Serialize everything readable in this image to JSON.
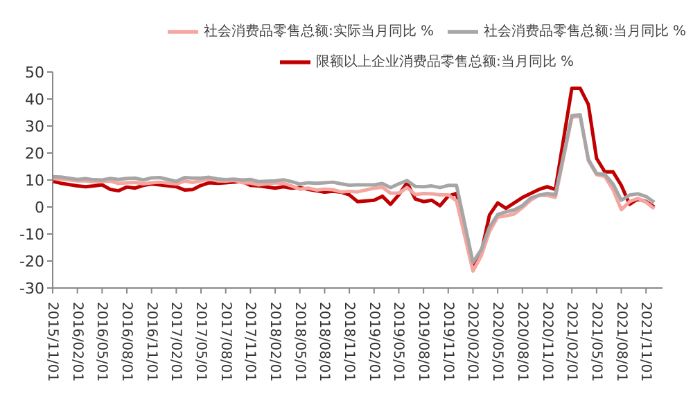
{
  "chart_data": {
    "type": "line",
    "legend": "top",
    "grid": false,
    "marker": "none",
    "line_style": "solid",
    "x": [
      "2015-11",
      "2015-12",
      "2016-02",
      "2016-03",
      "2016-04",
      "2016-05",
      "2016-06",
      "2016-07",
      "2016-08",
      "2016-09",
      "2016-10",
      "2016-11",
      "2016-12",
      "2017-02",
      "2017-03",
      "2017-04",
      "2017-05",
      "2017-06",
      "2017-07",
      "2017-08",
      "2017-09",
      "2017-10",
      "2017-11",
      "2017-12",
      "2018-02",
      "2018-03",
      "2018-04",
      "2018-05",
      "2018-06",
      "2018-07",
      "2018-08",
      "2018-09",
      "2018-10",
      "2018-11",
      "2018-12",
      "2019-02",
      "2019-03",
      "2019-04",
      "2019-05",
      "2019-06",
      "2019-07",
      "2019-08",
      "2019-09",
      "2019-10",
      "2019-11",
      "2019-12",
      "2020-02",
      "2020-03",
      "2020-04",
      "2020-05",
      "2020-06",
      "2020-07",
      "2020-08",
      "2020-09",
      "2020-10",
      "2020-11",
      "2020-12",
      "2021-02",
      "2021-03",
      "2021-04",
      "2021-05",
      "2021-06",
      "2021-07",
      "2021-08",
      "2021-09",
      "2021-10",
      "2021-11",
      "2021-12"
    ],
    "series": [
      {
        "name": "限额以上企业消费品零售总额:当月同比  %",
        "color": "#c00000",
        "values": [
          9.5,
          8.8,
          7.8,
          7.5,
          7.8,
          8.2,
          6.5,
          6.0,
          7.4,
          7.0,
          8.0,
          8.5,
          8.2,
          7.5,
          6.3,
          6.5,
          8.0,
          9.0,
          8.8,
          9.0,
          9.2,
          9.5,
          8.0,
          7.8,
          7.0,
          7.5,
          7.0,
          7.2,
          6.5,
          6.0,
          5.5,
          5.8,
          5.5,
          4.5,
          2.0,
          2.5,
          4.0,
          1.0,
          4.5,
          9.0,
          3.0,
          2.0,
          2.5,
          0.5,
          4.0,
          5.0,
          -21.5,
          -17.0,
          -3.0,
          1.5,
          -0.5,
          1.5,
          3.5,
          5.0,
          6.5,
          7.5,
          6.5,
          44.0,
          44.0,
          38.0,
          18.0,
          13.0,
          13.0,
          8.0,
          1.0,
          3.0,
          2.0,
          0.0
        ]
      },
      {
        "name": "社会消费品零售总额:实际当月同比  %",
        "color": "#f4a6a0",
        "values": [
          10.6,
          10.4,
          9.7,
          9.7,
          9.3,
          9.4,
          9.6,
          8.7,
          9.0,
          9.1,
          8.6,
          9.0,
          9.2,
          8.5,
          9.6,
          9.1,
          9.7,
          10.4,
          9.7,
          9.6,
          9.9,
          9.0,
          8.9,
          8.2,
          9.0,
          8.8,
          7.8,
          6.6,
          7.0,
          6.3,
          6.6,
          6.4,
          5.6,
          5.8,
          5.6,
          7.0,
          7.3,
          5.1,
          5.1,
          7.2,
          4.6,
          5.0,
          4.9,
          4.5,
          4.5,
          2.3,
          -23.7,
          -18.1,
          -9.1,
          -3.7,
          -3.3,
          -2.6,
          -0.2,
          2.5,
          4.4,
          4.3,
          3.6,
          33.2,
          33.8,
          17.2,
          12.0,
          11.3,
          6.4,
          -1.0,
          2.0,
          3.2,
          1.8,
          -0.6
        ]
      },
      {
        "name": "社会消费品零售总额:当月同比  %",
        "color": "#a6a6a6",
        "values": [
          11.2,
          11.1,
          10.2,
          10.5,
          10.1,
          10.0,
          10.6,
          10.2,
          10.6,
          10.7,
          10.0,
          10.8,
          10.9,
          9.5,
          10.9,
          10.7,
          10.7,
          11.0,
          10.4,
          10.1,
          10.3,
          10.0,
          10.2,
          9.4,
          9.7,
          10.1,
          9.4,
          8.5,
          9.0,
          8.8,
          9.0,
          9.2,
          8.6,
          8.1,
          8.2,
          8.2,
          8.7,
          7.2,
          8.6,
          9.8,
          7.6,
          7.5,
          7.8,
          7.2,
          8.0,
          8.0,
          -20.5,
          -15.8,
          -7.5,
          -2.8,
          -1.8,
          -1.1,
          0.5,
          3.3,
          4.3,
          5.0,
          4.6,
          33.8,
          34.2,
          17.7,
          12.4,
          12.1,
          8.5,
          2.5,
          4.4,
          4.9,
          3.9,
          1.7
        ]
      }
    ],
    "ylim": [
      -30,
      50
    ],
    "yticks": [
      -30,
      -20,
      -10,
      0,
      10,
      20,
      30,
      40,
      50
    ],
    "xlim": [
      "2015-11",
      "2022-01"
    ],
    "xticks": [
      {
        "value": "2015-11",
        "label": "2015/11/01"
      },
      {
        "value": "2016-02",
        "label": "2016/02/01"
      },
      {
        "value": "2016-05",
        "label": "2016/05/01"
      },
      {
        "value": "2016-08",
        "label": "2016/08/01"
      },
      {
        "value": "2016-11",
        "label": "2016/11/01"
      },
      {
        "value": "2017-02",
        "label": "2017/02/01"
      },
      {
        "value": "2017-05",
        "label": "2017/05/01"
      },
      {
        "value": "2017-08",
        "label": "2017/08/01"
      },
      {
        "value": "2017-11",
        "label": "2017/11/01"
      },
      {
        "value": "2018-02",
        "label": "2018/02/01"
      },
      {
        "value": "2018-05",
        "label": "2018/05/01"
      },
      {
        "value": "2018-08",
        "label": "2018/08/01"
      },
      {
        "value": "2018-11",
        "label": "2018/11/01"
      },
      {
        "value": "2019-02",
        "label": "2019/02/01"
      },
      {
        "value": "2019-05",
        "label": "2019/05/01"
      },
      {
        "value": "2019-08",
        "label": "2019/08/01"
      },
      {
        "value": "2019-11",
        "label": "2019/11/01"
      },
      {
        "value": "2020-02",
        "label": "2020/02/01"
      },
      {
        "value": "2020-05",
        "label": "2020/05/01"
      },
      {
        "value": "2020-08",
        "label": "2020/08/01"
      },
      {
        "value": "2020-11",
        "label": "2020/11/01"
      },
      {
        "value": "2021-02",
        "label": "2021/02/01"
      },
      {
        "value": "2021-05",
        "label": "2021/05/01"
      },
      {
        "value": "2021-08",
        "label": "2021/08/01"
      },
      {
        "value": "2021-11",
        "label": "2021/11/01"
      }
    ]
  }
}
